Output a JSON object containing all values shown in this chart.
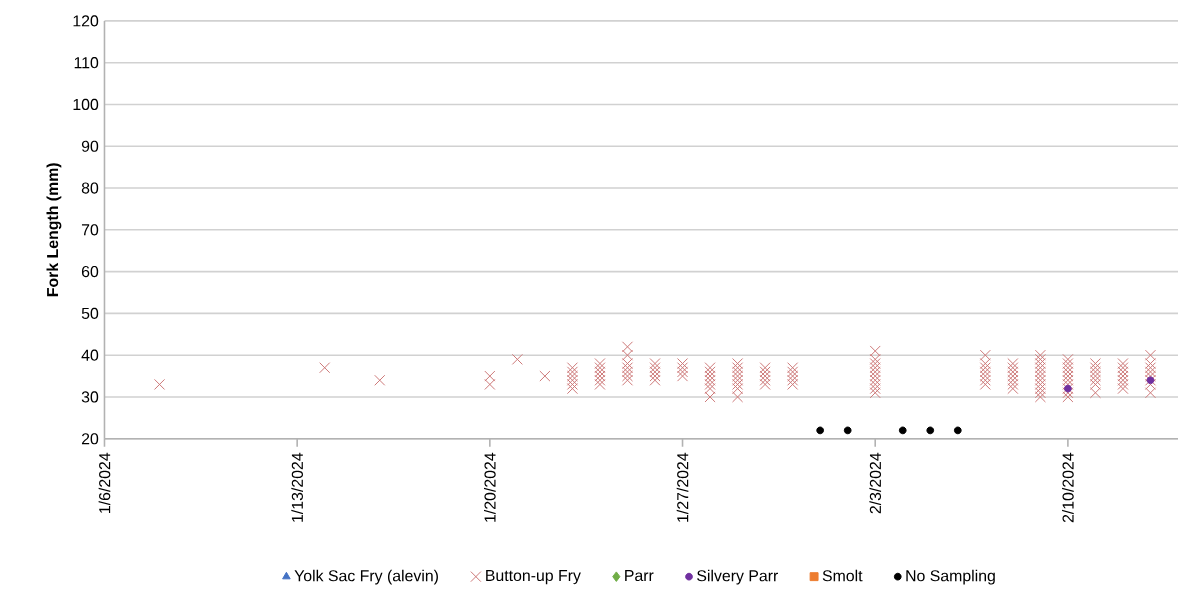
{
  "chart_data": {
    "type": "scatter",
    "ylabel": "Fork Length (mm)",
    "xlim": [
      "2024-01-06",
      "2024-02-14"
    ],
    "ylim": [
      20,
      120
    ],
    "xticks": [
      {
        "value": "2024-01-06",
        "label": "1/6/2024"
      },
      {
        "value": "2024-01-13",
        "label": "1/13/2024"
      },
      {
        "value": "2024-01-20",
        "label": "1/20/2024"
      },
      {
        "value": "2024-01-27",
        "label": "1/27/2024"
      },
      {
        "value": "2024-02-03",
        "label": "2/3/2024"
      },
      {
        "value": "2024-02-10",
        "label": "2/10/2024"
      }
    ],
    "yticks": [
      20,
      30,
      40,
      50,
      60,
      70,
      80,
      90,
      100,
      110,
      120
    ],
    "grid": "y",
    "legend": "bottom",
    "series": [
      {
        "name": "Yolk Sac Fry (alevin)",
        "color": "#4472c4",
        "marker": "triangle"
      },
      {
        "name": "Button-up Fry",
        "color": "#cc7777",
        "marker": "cross",
        "x": [
          "2024-01-08",
          "2024-01-14",
          "2024-01-16",
          "2024-01-20",
          "2024-01-20",
          "2024-01-21",
          "2024-01-22",
          "2024-01-23",
          "2024-01-23",
          "2024-01-23",
          "2024-01-23",
          "2024-01-23",
          "2024-01-23",
          "2024-01-24",
          "2024-01-24",
          "2024-01-24",
          "2024-01-24",
          "2024-01-24",
          "2024-01-24",
          "2024-01-25",
          "2024-01-25",
          "2024-01-25",
          "2024-01-25",
          "2024-01-25",
          "2024-01-25",
          "2024-01-25",
          "2024-01-26",
          "2024-01-26",
          "2024-01-26",
          "2024-01-26",
          "2024-01-26",
          "2024-01-27",
          "2024-01-27",
          "2024-01-27",
          "2024-01-27",
          "2024-01-28",
          "2024-01-28",
          "2024-01-28",
          "2024-01-28",
          "2024-01-28",
          "2024-01-28",
          "2024-01-28",
          "2024-01-29",
          "2024-01-29",
          "2024-01-29",
          "2024-01-29",
          "2024-01-29",
          "2024-01-29",
          "2024-01-29",
          "2024-01-29",
          "2024-01-30",
          "2024-01-30",
          "2024-01-30",
          "2024-01-30",
          "2024-01-30",
          "2024-01-31",
          "2024-01-31",
          "2024-01-31",
          "2024-01-31",
          "2024-01-31",
          "2024-02-03",
          "2024-02-03",
          "2024-02-03",
          "2024-02-03",
          "2024-02-03",
          "2024-02-03",
          "2024-02-03",
          "2024-02-03",
          "2024-02-03",
          "2024-02-03",
          "2024-02-07",
          "2024-02-07",
          "2024-02-07",
          "2024-02-07",
          "2024-02-07",
          "2024-02-07",
          "2024-02-07",
          "2024-02-08",
          "2024-02-08",
          "2024-02-08",
          "2024-02-08",
          "2024-02-08",
          "2024-02-08",
          "2024-02-08",
          "2024-02-09",
          "2024-02-09",
          "2024-02-09",
          "2024-02-09",
          "2024-02-09",
          "2024-02-09",
          "2024-02-09",
          "2024-02-09",
          "2024-02-09",
          "2024-02-09",
          "2024-02-09",
          "2024-02-10",
          "2024-02-10",
          "2024-02-10",
          "2024-02-10",
          "2024-02-10",
          "2024-02-10",
          "2024-02-10",
          "2024-02-10",
          "2024-02-10",
          "2024-02-10",
          "2024-02-11",
          "2024-02-11",
          "2024-02-11",
          "2024-02-11",
          "2024-02-11",
          "2024-02-11",
          "2024-02-11",
          "2024-02-12",
          "2024-02-12",
          "2024-02-12",
          "2024-02-12",
          "2024-02-12",
          "2024-02-12",
          "2024-02-12",
          "2024-02-13",
          "2024-02-13",
          "2024-02-13",
          "2024-02-13",
          "2024-02-13",
          "2024-02-13",
          "2024-02-13",
          "2024-02-13"
        ],
        "values": [
          33,
          37,
          34,
          33,
          35,
          39,
          35,
          32,
          33,
          34,
          35,
          36,
          37,
          33,
          34,
          35,
          36,
          37,
          38,
          34,
          35,
          36,
          37,
          38,
          40,
          42,
          34,
          35,
          36,
          37,
          38,
          35,
          36,
          37,
          38,
          30,
          32,
          33,
          34,
          35,
          36,
          37,
          30,
          32,
          33,
          34,
          35,
          36,
          37,
          38,
          33,
          34,
          35,
          36,
          37,
          33,
          34,
          35,
          36,
          37,
          31,
          32,
          33,
          34,
          35,
          36,
          37,
          38,
          39,
          41,
          33,
          34,
          35,
          36,
          37,
          38,
          40,
          32,
          33,
          34,
          35,
          36,
          37,
          38,
          30,
          31,
          32,
          33,
          34,
          35,
          36,
          37,
          38,
          39,
          40,
          30,
          31,
          32,
          33,
          34,
          35,
          36,
          37,
          38,
          39,
          31,
          33,
          34,
          35,
          36,
          37,
          38,
          32,
          33,
          34,
          35,
          36,
          37,
          38,
          31,
          33,
          34,
          35,
          36,
          37,
          38,
          40
        ]
      },
      {
        "name": "Parr",
        "color": "#70ad47",
        "marker": "diamond"
      },
      {
        "name": "Silvery Parr",
        "color": "#7030a0",
        "marker": "circle",
        "x": [
          "2024-02-10",
          "2024-02-13"
        ],
        "values": [
          32,
          34
        ]
      },
      {
        "name": "Smolt",
        "color": "#ed7d31",
        "marker": "square"
      },
      {
        "name": "No  Sampling",
        "color": "#000000",
        "marker": "circle",
        "x": [
          "2024-02-01",
          "2024-02-02",
          "2024-02-04",
          "2024-02-05",
          "2024-02-06"
        ],
        "values": [
          22,
          22,
          22,
          22,
          22
        ]
      }
    ]
  }
}
